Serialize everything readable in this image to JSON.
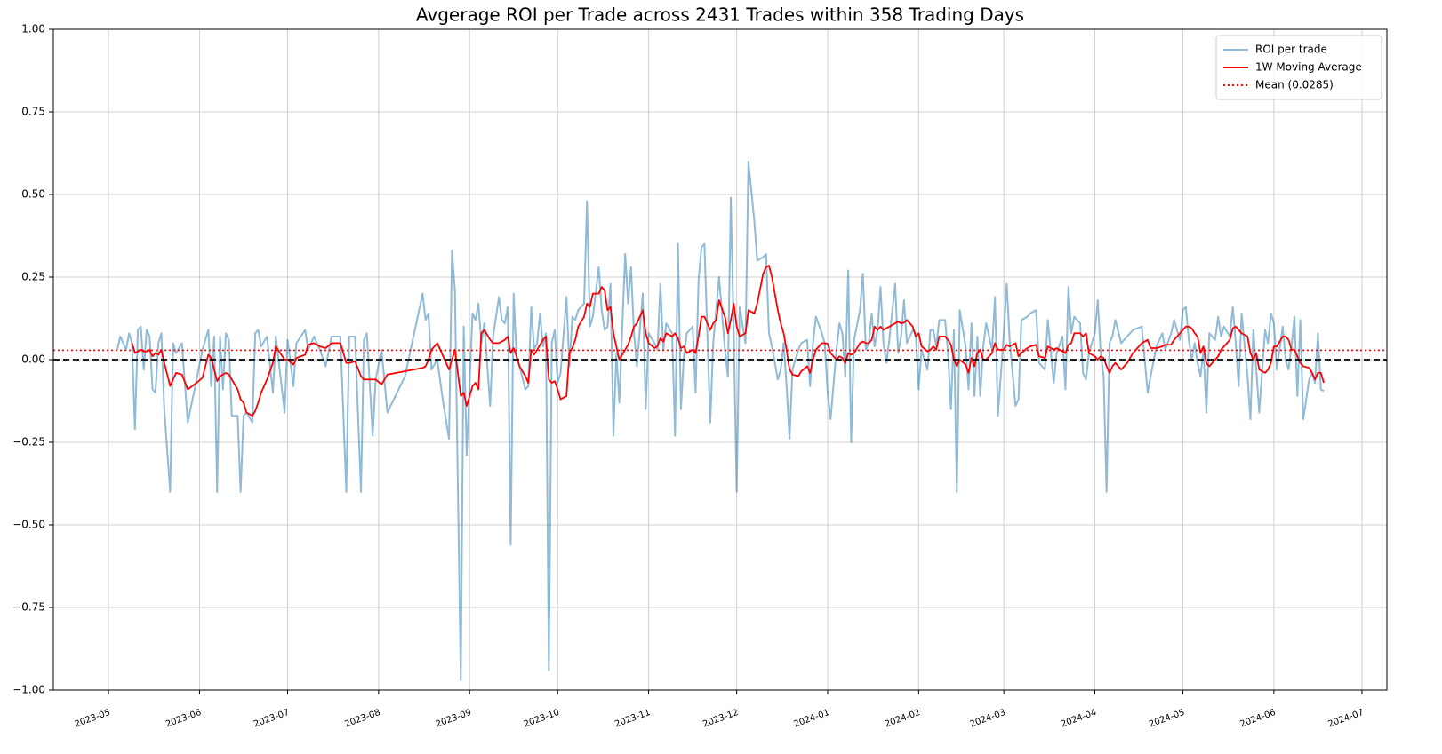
{
  "chart_data": {
    "type": "line",
    "title": "Avgerage ROI per Trade across 2431 Trades within 358 Trading Days",
    "x": [
      3,
      4,
      6,
      7,
      8,
      9,
      10,
      11,
      12,
      13,
      14,
      15,
      16,
      17,
      18,
      19,
      21,
      22,
      23,
      25,
      27,
      30,
      32,
      34,
      35,
      36,
      37,
      38,
      39,
      40,
      41,
      42,
      44,
      45,
      46,
      47,
      49,
      50,
      51,
      52,
      54,
      56,
      57,
      60,
      61,
      63,
      64,
      67,
      68,
      70,
      72,
      74,
      76,
      79,
      81,
      82,
      84,
      86,
      87,
      88,
      90,
      91,
      93,
      95,
      101,
      107,
      108,
      109,
      110,
      112,
      114,
      116,
      117,
      118,
      120,
      121,
      122,
      124,
      125,
      126,
      127,
      128,
      130,
      131,
      133,
      134,
      135,
      136,
      137,
      138,
      139,
      140,
      142,
      143,
      144,
      145,
      146,
      147,
      148,
      149,
      150,
      151,
      152,
      153,
      154,
      156,
      157,
      158,
      159,
      160,
      162,
      163,
      164,
      165,
      167,
      168,
      169,
      170,
      171,
      172,
      173,
      174,
      176,
      177,
      178,
      179,
      180,
      182,
      183,
      184,
      186,
      187,
      188,
      189,
      190,
      192,
      193,
      194,
      195,
      196,
      197,
      199,
      200,
      201,
      202,
      203,
      205,
      206,
      207,
      208,
      210,
      211,
      212,
      213,
      214,
      215,
      217,
      218,
      220,
      221,
      223,
      224,
      225,
      226,
      228,
      229,
      230,
      231,
      232,
      233,
      235,
      236,
      238,
      239,
      240,
      241,
      243,
      244,
      245,
      246,
      248,
      249,
      250,
      251,
      252,
      253,
      254,
      256,
      257,
      258,
      259,
      260,
      261,
      262,
      263,
      264,
      265,
      266,
      268,
      269,
      270,
      271,
      272,
      274,
      275,
      276,
      277,
      279,
      280,
      281,
      282,
      283,
      285,
      286,
      287,
      288,
      289,
      290,
      292,
      293,
      294,
      295,
      296,
      297,
      298,
      299,
      301,
      302,
      303,
      305,
      306,
      307,
      309,
      310,
      311,
      313,
      314,
      316,
      317,
      319,
      320,
      322,
      323,
      325,
      326,
      327,
      328,
      329,
      331,
      332,
      333,
      334,
      336,
      337,
      338,
      339,
      340,
      341,
      342,
      343,
      345,
      347,
      349,
      352,
      354,
      355,
      357,
      359,
      360,
      362,
      363,
      365,
      366,
      367,
      368,
      369,
      370,
      371,
      372,
      373,
      374,
      375,
      377,
      378,
      379,
      380,
      382,
      383,
      384,
      385,
      386,
      388,
      389,
      390,
      391,
      392,
      394,
      395,
      396,
      397,
      398,
      400,
      401,
      402,
      403,
      404,
      405,
      406,
      407,
      409,
      410,
      411,
      412,
      413,
      414
    ],
    "series": [
      {
        "name": "ROI per trade",
        "color": "#1f77b4",
        "alpha": 0.5,
        "style": "solid",
        "values": [
          0.03,
          0.07,
          0.03,
          0.08,
          0.05,
          -0.21,
          0.09,
          0.1,
          -0.03,
          0.09,
          0.07,
          -0.09,
          -0.1,
          0.05,
          0.08,
          -0.15,
          -0.4,
          0.05,
          0.02,
          0.05,
          -0.19,
          -0.06,
          0.03,
          0.09,
          -0.08,
          0.07,
          -0.4,
          0.07,
          -0.09,
          0.08,
          0.06,
          -0.17,
          -0.17,
          -0.4,
          -0.17,
          -0.16,
          -0.19,
          0.08,
          0.09,
          0.04,
          0.07,
          -0.1,
          0.07,
          -0.16,
          0.06,
          -0.08,
          0.05,
          0.09,
          0.03,
          0.07,
          0.03,
          -0.02,
          0.07,
          0.07,
          -0.4,
          0.07,
          0.07,
          -0.4,
          0.06,
          0.08,
          -0.23,
          -0.06,
          0.03,
          -0.16,
          -0.05,
          0.2,
          0.12,
          0.14,
          -0.03,
          0.0,
          -0.13,
          -0.24,
          0.33,
          0.21,
          -0.97,
          0.1,
          -0.29,
          0.14,
          0.12,
          0.17,
          0.05,
          0.11,
          -0.14,
          0.07,
          0.19,
          0.12,
          0.11,
          0.16,
          -0.56,
          0.2,
          0.01,
          -0.02,
          -0.09,
          -0.08,
          0.16,
          0.03,
          0.05,
          0.14,
          0.04,
          0.08,
          -0.94,
          0.05,
          0.09,
          -0.07,
          -0.04,
          0.19,
          -0.02,
          0.13,
          0.12,
          0.15,
          0.17,
          0.48,
          0.1,
          0.13,
          0.28,
          0.15,
          0.09,
          0.1,
          0.23,
          -0.23,
          0.02,
          -0.13,
          0.32,
          0.17,
          0.28,
          0.08,
          -0.02,
          0.2,
          -0.15,
          0.08,
          0.05,
          0.03,
          0.23,
          0.03,
          0.11,
          0.08,
          -0.23,
          0.35,
          -0.15,
          0.01,
          0.08,
          0.1,
          -0.1,
          0.24,
          0.34,
          0.35,
          -0.19,
          0.05,
          0.15,
          0.25,
          0.03,
          -0.05,
          0.49,
          0.08,
          -0.4,
          0.16,
          0.05,
          0.6,
          0.42,
          0.3,
          0.31,
          0.32,
          0.08,
          0.04,
          -0.06,
          -0.03,
          0.05,
          -0.08,
          -0.24,
          -0.03,
          0.03,
          0.05,
          0.06,
          -0.08,
          0.05,
          0.13,
          0.08,
          0.05,
          -0.1,
          -0.18,
          0.03,
          0.11,
          0.08,
          -0.05,
          0.27,
          -0.25,
          0.06,
          0.15,
          0.26,
          0.03,
          0.05,
          0.14,
          0.04,
          0.09,
          0.22,
          0.05,
          -0.01,
          0.06,
          0.23,
          0.02,
          0.07,
          0.18,
          0.05,
          0.09,
          0.08,
          -0.09,
          0.03,
          -0.03,
          0.09,
          0.09,
          0.04,
          0.12,
          0.12,
          0.02,
          -0.15,
          0.09,
          -0.4,
          0.15,
          0.04,
          -0.09,
          0.11,
          -0.11,
          0.07,
          -0.11,
          0.04,
          0.11,
          0.03,
          0.19,
          -0.17,
          0.08,
          0.23,
          0.06,
          -0.14,
          -0.12,
          0.12,
          0.13,
          0.14,
          0.15,
          -0.01,
          -0.03,
          0.12,
          -0.07,
          0.02,
          0.07,
          -0.09,
          0.22,
          0.08,
          0.13,
          0.11,
          -0.04,
          -0.06,
          0.02,
          0.08,
          0.18,
          0.02,
          -0.05,
          -0.4,
          0.05,
          0.07,
          0.12,
          0.05,
          0.07,
          0.09,
          0.1,
          -0.1,
          -0.05,
          0.04,
          0.08,
          0.03,
          0.08,
          0.12,
          0.06,
          0.15,
          0.16,
          0.06,
          0.0,
          0.05,
          -0.01,
          -0.05,
          0.03,
          -0.16,
          0.08,
          0.06,
          0.13,
          0.07,
          0.1,
          0.07,
          0.16,
          0.05,
          -0.08,
          0.14,
          -0.05,
          -0.18,
          0.09,
          -0.03,
          -0.16,
          0.09,
          0.05,
          0.14,
          0.11,
          -0.03,
          0.1,
          0.0,
          -0.03,
          0.04,
          0.13,
          -0.11,
          0.12,
          -0.18,
          -0.06,
          -0.04,
          -0.07,
          0.08,
          -0.09,
          -0.095
        ]
      },
      {
        "name": "1W Moving Average",
        "color": "#ff0000",
        "alpha": 1,
        "style": "solid",
        "values": [
          null,
          null,
          null,
          null,
          0.05,
          0.02,
          0.025,
          0.03,
          0.025,
          0.025,
          0.03,
          0.01,
          0.02,
          0.015,
          0.03,
          -0.01,
          -0.08,
          -0.06,
          -0.04,
          -0.045,
          -0.09,
          -0.07,
          -0.055,
          0.015,
          0.005,
          -0.03,
          -0.065,
          -0.05,
          -0.045,
          -0.04,
          -0.045,
          -0.06,
          -0.09,
          -0.12,
          -0.13,
          -0.16,
          -0.17,
          -0.155,
          -0.13,
          -0.1,
          -0.06,
          -0.01,
          0.04,
          0.0,
          0.0,
          -0.015,
          0.005,
          0.015,
          0.045,
          0.05,
          0.04,
          0.035,
          0.05,
          0.05,
          -0.01,
          -0.01,
          -0.005,
          -0.05,
          -0.06,
          -0.06,
          -0.06,
          -0.06,
          -0.075,
          -0.045,
          -0.035,
          -0.025,
          -0.02,
          0.0,
          0.03,
          0.05,
          0.01,
          -0.03,
          0.0,
          0.03,
          -0.11,
          -0.1,
          -0.14,
          -0.08,
          -0.07,
          -0.09,
          0.08,
          0.09,
          0.06,
          0.05,
          0.05,
          0.055,
          0.06,
          0.07,
          0.02,
          0.035,
          0.01,
          -0.02,
          -0.05,
          -0.07,
          0.03,
          0.015,
          0.03,
          0.045,
          0.06,
          0.07,
          -0.06,
          -0.07,
          -0.065,
          -0.09,
          -0.12,
          -0.11,
          0.02,
          0.035,
          0.06,
          0.1,
          0.13,
          0.17,
          0.16,
          0.2,
          0.2,
          0.22,
          0.21,
          0.15,
          0.16,
          0.08,
          0.04,
          0.0,
          0.03,
          0.045,
          0.07,
          0.1,
          0.11,
          0.15,
          0.08,
          0.05,
          0.035,
          0.04,
          0.065,
          0.055,
          0.08,
          0.07,
          0.08,
          0.065,
          0.035,
          0.04,
          0.02,
          0.03,
          0.02,
          0.07,
          0.13,
          0.13,
          0.09,
          0.11,
          0.12,
          0.18,
          0.13,
          0.08,
          0.12,
          0.17,
          0.1,
          0.07,
          0.08,
          0.15,
          0.14,
          0.17,
          0.26,
          0.28,
          0.285,
          0.25,
          0.15,
          0.11,
          0.08,
          0.03,
          -0.03,
          -0.045,
          -0.05,
          -0.035,
          -0.02,
          -0.04,
          0.0,
          0.03,
          0.05,
          0.05,
          0.048,
          0.02,
          0.0,
          0.01,
          0.005,
          -0.01,
          0.02,
          0.015,
          0.02,
          0.05,
          0.055,
          0.05,
          0.05,
          0.06,
          0.1,
          0.09,
          0.1,
          0.09,
          0.095,
          0.1,
          0.11,
          0.115,
          0.11,
          0.112,
          0.12,
          0.1,
          0.07,
          0.08,
          0.04,
          0.025,
          0.03,
          0.04,
          0.03,
          0.07,
          0.07,
          0.06,
          0.045,
          0.0,
          -0.02,
          0.0,
          -0.015,
          -0.04,
          0.005,
          -0.02,
          0.02,
          0.03,
          0.0,
          0.0,
          0.02,
          0.05,
          0.03,
          0.03,
          0.045,
          0.04,
          0.05,
          0.01,
          0.02,
          0.035,
          0.04,
          0.045,
          0.01,
          0.005,
          0.04,
          0.03,
          0.035,
          0.025,
          0.02,
          0.045,
          0.05,
          0.08,
          0.08,
          0.07,
          0.08,
          0.02,
          0.01,
          0.0,
          0.01,
          0.005,
          -0.02,
          -0.04,
          -0.02,
          -0.01,
          -0.03,
          -0.01,
          0.02,
          0.05,
          0.06,
          0.035,
          0.035,
          0.04,
          0.045,
          0.045,
          0.06,
          0.08,
          0.09,
          0.1,
          0.1,
          0.095,
          0.08,
          0.07,
          0.02,
          0.04,
          -0.01,
          -0.02,
          0.0,
          0.01,
          0.03,
          0.04,
          0.06,
          0.095,
          0.1,
          0.09,
          0.08,
          0.07,
          0.02,
          0.0,
          0.02,
          -0.03,
          -0.04,
          -0.03,
          -0.01,
          0.04,
          0.04,
          0.07,
          0.07,
          0.06,
          0.03,
          0.03,
          0.01,
          -0.01,
          -0.02,
          -0.025,
          -0.04,
          -0.06,
          -0.04,
          -0.04,
          -0.07
        ]
      },
      {
        "name": "Mean (0.0285)",
        "color": "#ff0000",
        "alpha": 1,
        "style": "dotted",
        "value": 0.0285
      }
    ],
    "zero_line": 0,
    "xlim": [
      -18.8,
      435.5
    ],
    "xticks": [
      {
        "value": 0,
        "label": "2023-05"
      },
      {
        "value": 31,
        "label": "2023-06"
      },
      {
        "value": 61,
        "label": "2023-07"
      },
      {
        "value": 92,
        "label": "2023-08"
      },
      {
        "value": 123,
        "label": "2023-09"
      },
      {
        "value": 153,
        "label": "2023-10"
      },
      {
        "value": 184,
        "label": "2023-11"
      },
      {
        "value": 214,
        "label": "2023-12"
      },
      {
        "value": 245,
        "label": "2024-01"
      },
      {
        "value": 276,
        "label": "2024-02"
      },
      {
        "value": 305,
        "label": "2024-03"
      },
      {
        "value": 336,
        "label": "2024-04"
      },
      {
        "value": 366,
        "label": "2024-05"
      },
      {
        "value": 397,
        "label": "2024-06"
      },
      {
        "value": 427,
        "label": "2024-07"
      }
    ],
    "ylim": [
      -1,
      1
    ],
    "yticks": [
      {
        "value": -1,
        "label": "−1.00"
      },
      {
        "value": -0.75,
        "label": "−0.75"
      },
      {
        "value": -0.5,
        "label": "−0.50"
      },
      {
        "value": -0.25,
        "label": "−0.25"
      },
      {
        "value": 0,
        "label": "0.00"
      },
      {
        "value": 0.25,
        "label": "0.25"
      },
      {
        "value": 0.5,
        "label": "0.50"
      },
      {
        "value": 0.75,
        "label": "0.75"
      },
      {
        "value": 1,
        "label": "1.00"
      }
    ],
    "grid": true,
    "legend": "upper right"
  }
}
